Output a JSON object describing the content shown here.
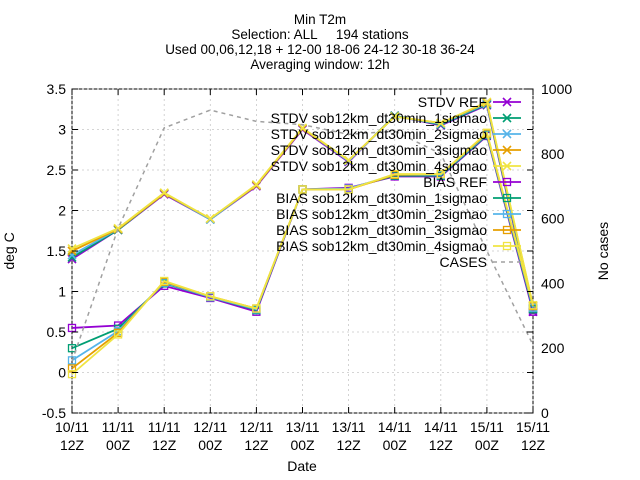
{
  "title_lines": [
    "Min T2m",
    "Selection: ALL     194 stations",
    "Used 00,06,12,18 + 12-00 18-06 24-12 30-18 36-24",
    "Averaging window: 12h"
  ],
  "chart_data": {
    "type": "line",
    "xlabel": "Date",
    "ylabel": "deg C",
    "y2label": "No cases",
    "ylim": [
      -0.5,
      3.5
    ],
    "y2lim": [
      0,
      1000
    ],
    "yticks": [
      "-0.5",
      "0",
      "0.5",
      "1",
      "1.5",
      "2",
      "2.5",
      "3",
      "3.5"
    ],
    "y2ticks": [
      "0",
      "200",
      "400",
      "600",
      "800",
      "1000"
    ],
    "categories": [
      [
        "10/11",
        "12Z"
      ],
      [
        "11/11",
        "00Z"
      ],
      [
        "11/11",
        "12Z"
      ],
      [
        "12/11",
        "00Z"
      ],
      [
        "12/11",
        "12Z"
      ],
      [
        "13/11",
        "00Z"
      ],
      [
        "13/11",
        "12Z"
      ],
      [
        "14/11",
        "00Z"
      ],
      [
        "14/11",
        "12Z"
      ],
      [
        "15/11",
        "00Z"
      ],
      [
        "15/11",
        "12Z"
      ]
    ],
    "legend_position": "top-right",
    "grid": true,
    "series": [
      {
        "name": "STDV REF",
        "axis": "y",
        "color": "#9400d3",
        "marker": "x",
        "values": [
          1.4,
          1.76,
          2.2,
          1.89,
          2.3,
          3.0,
          2.6,
          3.17,
          3.05,
          3.3,
          0.75
        ]
      },
      {
        "name": "STDV sob12km_dt30min_1sigmao",
        "axis": "y",
        "color": "#009e73",
        "marker": "x",
        "values": [
          1.42,
          1.76,
          2.21,
          1.89,
          2.31,
          3.01,
          2.61,
          3.17,
          3.06,
          3.31,
          0.78
        ]
      },
      {
        "name": "STDV sob12km_dt30min_2sigmao",
        "axis": "y",
        "color": "#56b4e9",
        "marker": "x",
        "values": [
          1.45,
          1.77,
          2.21,
          1.89,
          2.31,
          3.01,
          2.61,
          3.16,
          3.07,
          3.32,
          0.8
        ]
      },
      {
        "name": "STDV sob12km_dt30min_3sigmao",
        "axis": "y",
        "color": "#e69f00",
        "marker": "x",
        "values": [
          1.5,
          1.77,
          2.21,
          1.9,
          2.31,
          3.01,
          2.62,
          3.16,
          3.08,
          3.33,
          0.82
        ]
      },
      {
        "name": "STDV sob12km_dt30min_4sigmao",
        "axis": "y",
        "color": "#f0e442",
        "marker": "x",
        "values": [
          1.53,
          1.78,
          2.22,
          1.9,
          2.32,
          3.02,
          2.62,
          3.16,
          3.08,
          3.34,
          0.83
        ]
      },
      {
        "name": "BIAS REF",
        "axis": "y",
        "color": "#9400d3",
        "marker": "square",
        "values": [
          0.55,
          0.58,
          1.07,
          0.92,
          0.75,
          2.26,
          2.28,
          2.42,
          2.42,
          2.92,
          0.75
        ]
      },
      {
        "name": "BIAS sob12km_dt30min_1sigmao",
        "axis": "y",
        "color": "#009e73",
        "marker": "square",
        "values": [
          0.3,
          0.54,
          1.1,
          0.93,
          0.77,
          2.26,
          2.27,
          2.43,
          2.43,
          2.93,
          0.78
        ]
      },
      {
        "name": "BIAS sob12km_dt30min_2sigmao",
        "axis": "y",
        "color": "#56b4e9",
        "marker": "square",
        "values": [
          0.15,
          0.51,
          1.11,
          0.93,
          0.78,
          2.26,
          2.27,
          2.44,
          2.44,
          2.94,
          0.8
        ]
      },
      {
        "name": "BIAS sob12km_dt30min_3sigmao",
        "axis": "y",
        "color": "#e69f00",
        "marker": "square",
        "values": [
          0.05,
          0.49,
          1.12,
          0.94,
          0.79,
          2.26,
          2.26,
          2.44,
          2.45,
          2.95,
          0.82
        ]
      },
      {
        "name": "BIAS sob12km_dt30min_4sigmao",
        "axis": "y",
        "color": "#f0e442",
        "marker": "square",
        "values": [
          -0.02,
          0.47,
          1.13,
          0.94,
          0.79,
          2.26,
          2.26,
          2.45,
          2.45,
          2.96,
          0.83
        ]
      },
      {
        "name": "CASES",
        "axis": "y2",
        "color": "#a0a0a0",
        "marker": "none",
        "dashed": true,
        "values": [
          160,
          570,
          880,
          935,
          900,
          890,
          860,
          870,
          800,
          500,
          210
        ]
      }
    ]
  }
}
